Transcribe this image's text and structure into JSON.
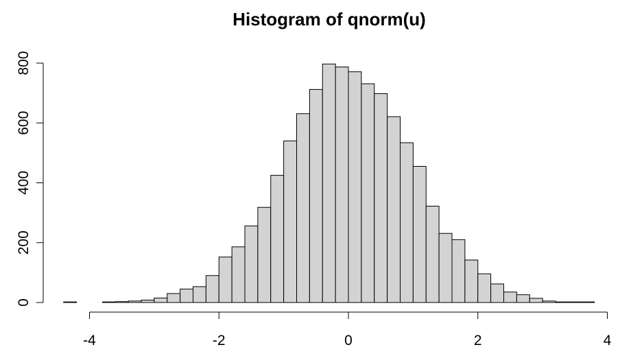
{
  "chart_data": {
    "type": "bar",
    "title": "Histogram of qnorm(u)",
    "xlabel": "",
    "ylabel": "",
    "bin_width": 0.2,
    "bin_start": -4.4,
    "bins": [
      {
        "x0": -4.4,
        "x1": -4.2,
        "count": 2
      },
      {
        "x0": -4.2,
        "x1": -4.0,
        "count": 0
      },
      {
        "x0": -4.0,
        "x1": -3.8,
        "count": 0
      },
      {
        "x0": -3.8,
        "x1": -3.6,
        "count": 2
      },
      {
        "x0": -3.6,
        "x1": -3.4,
        "count": 3
      },
      {
        "x0": -3.4,
        "x1": -3.2,
        "count": 5
      },
      {
        "x0": -3.2,
        "x1": -3.0,
        "count": 8
      },
      {
        "x0": -3.0,
        "x1": -2.8,
        "count": 15
      },
      {
        "x0": -2.8,
        "x1": -2.6,
        "count": 30
      },
      {
        "x0": -2.6,
        "x1": -2.4,
        "count": 45
      },
      {
        "x0": -2.4,
        "x1": -2.2,
        "count": 53
      },
      {
        "x0": -2.2,
        "x1": -2.0,
        "count": 90
      },
      {
        "x0": -2.0,
        "x1": -1.8,
        "count": 152
      },
      {
        "x0": -1.8,
        "x1": -1.6,
        "count": 186
      },
      {
        "x0": -1.6,
        "x1": -1.4,
        "count": 256
      },
      {
        "x0": -1.4,
        "x1": -1.2,
        "count": 318
      },
      {
        "x0": -1.2,
        "x1": -1.0,
        "count": 425
      },
      {
        "x0": -1.0,
        "x1": -0.8,
        "count": 540
      },
      {
        "x0": -0.8,
        "x1": -0.6,
        "count": 631
      },
      {
        "x0": -0.6,
        "x1": -0.4,
        "count": 712
      },
      {
        "x0": -0.4,
        "x1": -0.2,
        "count": 797
      },
      {
        "x0": -0.2,
        "x1": 0.0,
        "count": 787
      },
      {
        "x0": 0.0,
        "x1": 0.2,
        "count": 771
      },
      {
        "x0": 0.2,
        "x1": 0.4,
        "count": 731
      },
      {
        "x0": 0.4,
        "x1": 0.6,
        "count": 698
      },
      {
        "x0": 0.6,
        "x1": 0.8,
        "count": 621
      },
      {
        "x0": 0.8,
        "x1": 1.0,
        "count": 534
      },
      {
        "x0": 1.0,
        "x1": 1.2,
        "count": 455
      },
      {
        "x0": 1.2,
        "x1": 1.4,
        "count": 322
      },
      {
        "x0": 1.4,
        "x1": 1.6,
        "count": 231
      },
      {
        "x0": 1.6,
        "x1": 1.8,
        "count": 210
      },
      {
        "x0": 1.8,
        "x1": 2.0,
        "count": 142
      },
      {
        "x0": 2.0,
        "x1": 2.2,
        "count": 96
      },
      {
        "x0": 2.2,
        "x1": 2.4,
        "count": 62
      },
      {
        "x0": 2.4,
        "x1": 2.6,
        "count": 35
      },
      {
        "x0": 2.6,
        "x1": 2.8,
        "count": 26
      },
      {
        "x0": 2.8,
        "x1": 3.0,
        "count": 14
      },
      {
        "x0": 3.0,
        "x1": 3.2,
        "count": 5
      },
      {
        "x0": 3.2,
        "x1": 3.4,
        "count": 2
      },
      {
        "x0": 3.4,
        "x1": 3.6,
        "count": 2
      },
      {
        "x0": 3.6,
        "x1": 3.8,
        "count": 2
      }
    ],
    "xlim": [
      -4.4,
      3.8
    ],
    "ylim": [
      0,
      800
    ],
    "x_ticks": [
      {
        "value": -4,
        "label": "-4"
      },
      {
        "value": -2,
        "label": "-2"
      },
      {
        "value": 0,
        "label": "0"
      },
      {
        "value": 2,
        "label": "2"
      },
      {
        "value": 4,
        "label": "4"
      }
    ],
    "y_ticks": [
      {
        "value": 0,
        "label": "0"
      },
      {
        "value": 200,
        "label": "200"
      },
      {
        "value": 400,
        "label": "400"
      },
      {
        "value": 600,
        "label": "600"
      },
      {
        "value": 800,
        "label": "800"
      }
    ],
    "grid": false,
    "bar_fill": "#d3d3d3",
    "bar_stroke": "#000000",
    "axis_color": "#000000",
    "background": "#ffffff"
  }
}
